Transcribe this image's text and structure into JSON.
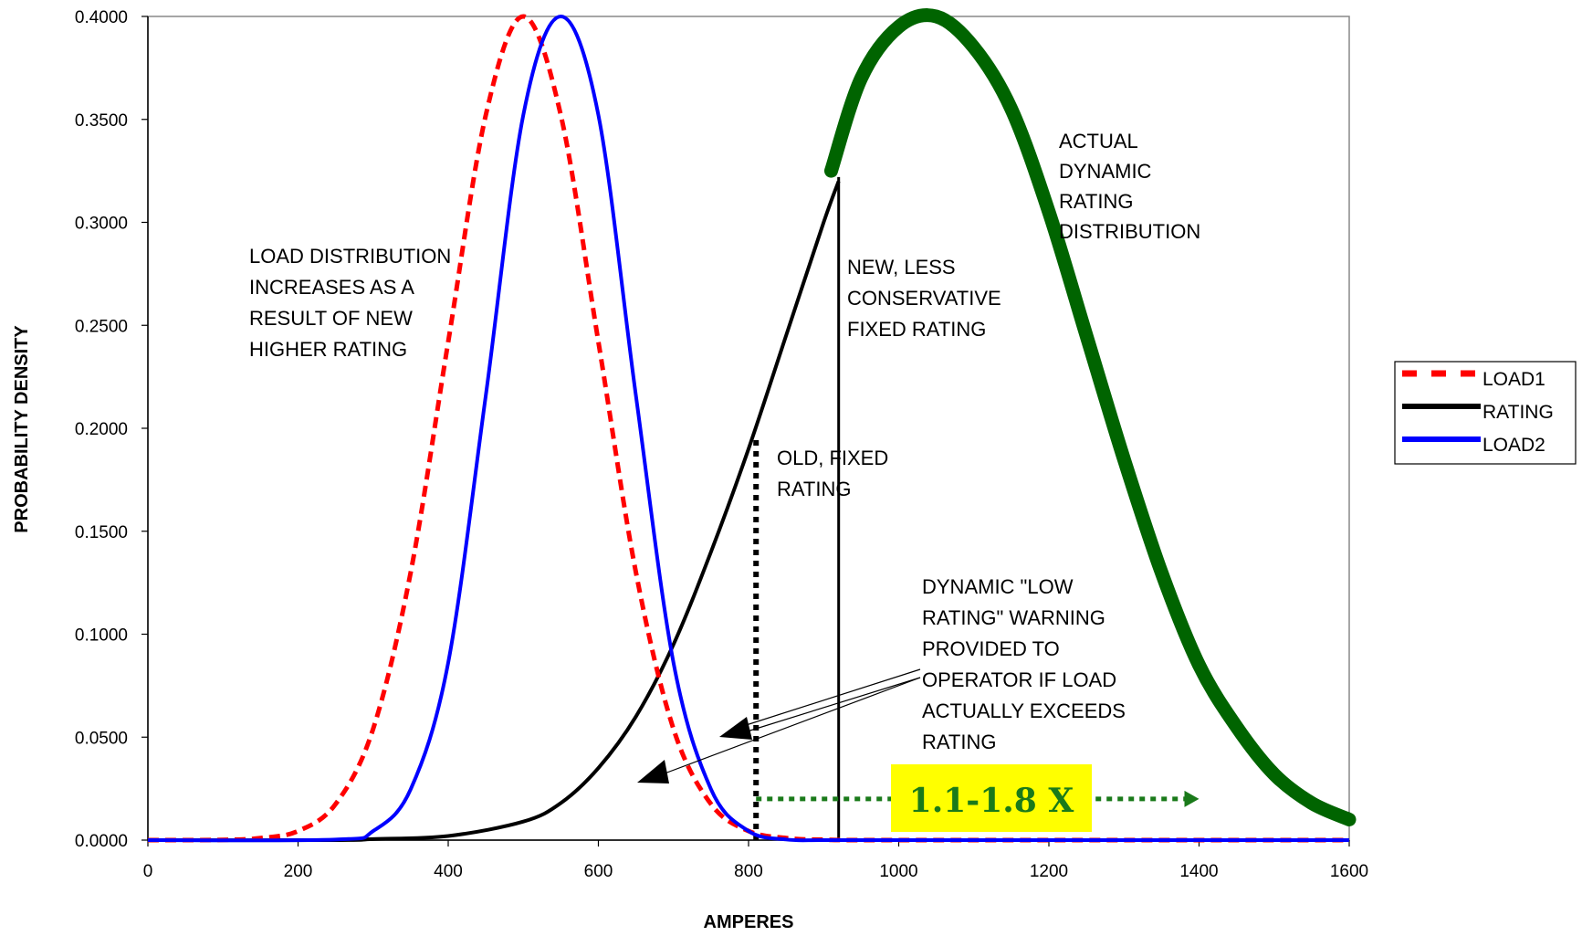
{
  "chart_data": {
    "type": "line",
    "xlabel": "AMPERES",
    "ylabel": "PROBABILITY DENSITY",
    "xlim": [
      0,
      1600
    ],
    "ylim": [
      0,
      0.4
    ],
    "x_ticks": [
      "0",
      "200",
      "400",
      "600",
      "800",
      "1000",
      "1200",
      "1400",
      "1600"
    ],
    "y_ticks": [
      "0.0000",
      "0.0500",
      "0.1000",
      "0.1500",
      "0.2000",
      "0.2500",
      "0.3000",
      "0.3500",
      "0.4000"
    ],
    "grid": false,
    "legend_position": "right",
    "series": [
      {
        "name": "LOAD1",
        "color": "#ff0000",
        "style": "dashed",
        "x": [
          0,
          100,
          150,
          200,
          250,
          300,
          350,
          400,
          450,
          500,
          550,
          600,
          650,
          700,
          750,
          800,
          850,
          900,
          1000,
          1600
        ],
        "y": [
          0.0,
          0.0001,
          0.001,
          0.0044,
          0.0175,
          0.054,
          0.13,
          0.242,
          0.352,
          0.4,
          0.352,
          0.242,
          0.13,
          0.054,
          0.0175,
          0.0044,
          0.001,
          0.0002,
          0.0,
          0.0
        ]
      },
      {
        "name": "LOAD2",
        "color": "#0000ff",
        "style": "solid",
        "x": [
          0,
          250,
          300,
          350,
          400,
          450,
          500,
          550,
          600,
          650,
          700,
          750,
          800,
          850,
          900,
          1000,
          1600
        ],
        "y": [
          0.0,
          0.0003,
          0.0044,
          0.0247,
          0.0862,
          0.2158,
          0.3521,
          0.4,
          0.3521,
          0.2158,
          0.0862,
          0.0247,
          0.0044,
          0.0003,
          0.0,
          0.0,
          0.0
        ]
      },
      {
        "name": "RATING",
        "color": "#000000",
        "style": "solid",
        "x": [
          0,
          250,
          300,
          400,
          500,
          550,
          600,
          650,
          700,
          750,
          800,
          850,
          900,
          920
        ],
        "y": [
          0.0,
          0.0,
          0.0005,
          0.002,
          0.009,
          0.018,
          0.035,
          0.06,
          0.095,
          0.14,
          0.19,
          0.245,
          0.3,
          0.32
        ]
      },
      {
        "color": "#006400",
        "style": "thick",
        "x": [
          910,
          950,
          1000,
          1050,
          1100,
          1150,
          1200,
          1250,
          1300,
          1350,
          1400,
          1450,
          1500,
          1550,
          1600
        ],
        "y": [
          0.325,
          0.37,
          0.395,
          0.4,
          0.385,
          0.355,
          0.305,
          0.245,
          0.185,
          0.13,
          0.085,
          0.055,
          0.032,
          0.018,
          0.01
        ]
      }
    ],
    "reference_lines": [
      {
        "x": 810,
        "y_top": 0.195,
        "style": "dotted"
      },
      {
        "x": 920,
        "y_top": 0.322,
        "style": "solid"
      }
    ],
    "arrow_range": {
      "from": 810,
      "to": 1400,
      "y": 0.02,
      "label": "1.1-1.8 X",
      "label_bg": "#ffff00",
      "color": "#1a7a1a"
    },
    "annotations": {
      "load_increase": [
        "LOAD DISTRIBUTION",
        "INCREASES AS A",
        "RESULT OF NEW",
        "HIGHER RATING"
      ],
      "actual_dynamic": [
        "ACTUAL",
        "DYNAMIC",
        "RATING",
        "DISTRIBUTION"
      ],
      "new_fixed": [
        "NEW, LESS",
        "CONSERVATIVE",
        "FIXED RATING"
      ],
      "old_fixed": [
        "OLD, FIXED",
        "RATING"
      ],
      "warning": [
        "DYNAMIC \"LOW",
        "RATING\"  WARNING",
        "PROVIDED TO",
        "OPERATOR IF LOAD",
        "ACTUALLY EXCEEDS",
        "RATING"
      ]
    },
    "legend": [
      "LOAD1",
      "RATING",
      "LOAD2"
    ]
  }
}
